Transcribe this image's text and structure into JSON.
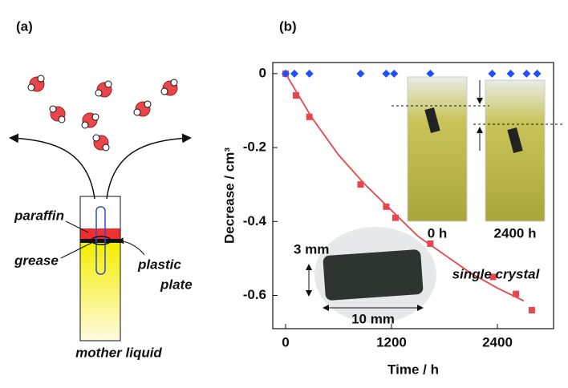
{
  "panel_a": {
    "panel_label": "(a)",
    "labels": [
      "paraffin",
      "grease",
      "plastic",
      "plate",
      "mother liquid"
    ]
  },
  "chart_data": {
    "type": "scatter",
    "panel_label": "(b)",
    "x_label": "Time / h",
    "y_label": "Decrease / cm³",
    "xlim": [
      -145,
      3036
    ],
    "ylim": [
      -0.69,
      0.03
    ],
    "xticks": [
      0,
      1200,
      2400
    ],
    "yticks": [
      0,
      -0.2,
      -0.4,
      -0.6
    ],
    "series": [
      {
        "marker": "line",
        "color": "#e8464b",
        "x": [
          0,
          300,
          600,
          900,
          1200,
          1500,
          1800,
          2100,
          2400,
          2700
        ],
        "values": [
          0,
          -0.12,
          -0.22,
          -0.3,
          -0.37,
          -0.44,
          -0.49,
          -0.54,
          -0.58,
          -0.615
        ]
      },
      {
        "marker": "square",
        "color": "#e8464b",
        "x": [
          0,
          118,
          270,
          850,
          1140,
          1245,
          1640,
          2350,
          2610,
          2790
        ],
        "values": [
          0,
          -0.059,
          -0.117,
          -0.3,
          -0.36,
          -0.39,
          -0.46,
          -0.55,
          -0.596,
          -0.64
        ]
      },
      {
        "marker": "diamond",
        "color": "#1f4fff",
        "x": [
          0,
          100,
          270,
          850,
          1140,
          1230,
          1640,
          2340,
          2550,
          2730,
          2850
        ],
        "values": [
          0,
          0,
          0,
          0,
          0,
          0,
          0,
          0,
          0,
          0,
          0
        ]
      }
    ],
    "annotations": [
      "0 h",
      "2400 h",
      "single crystal",
      "3 mm",
      "10 mm"
    ]
  }
}
